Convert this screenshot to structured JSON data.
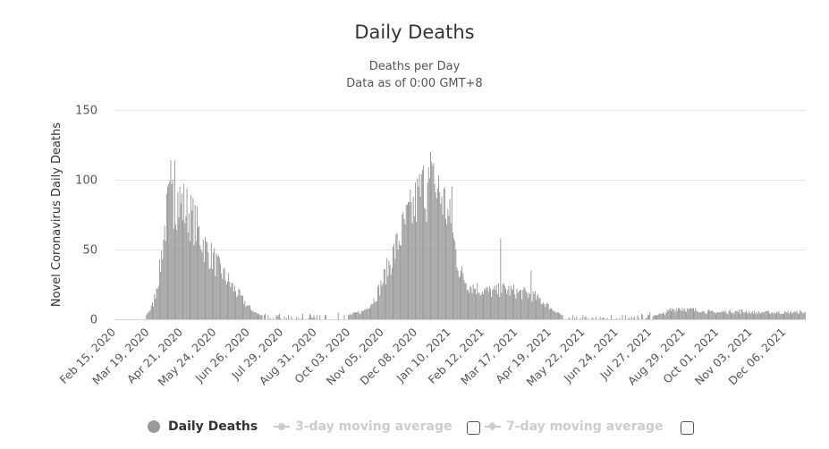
{
  "chart_data": {
    "type": "bar",
    "title": "Daily Deaths",
    "subtitle_lines": [
      "Deaths per Day",
      "Data as of 0:00 GMT+8"
    ],
    "xlabel": "",
    "ylabel": "Novel Coronavirus Daily Deaths",
    "ylim": [
      0,
      150
    ],
    "yticks": [
      0,
      50,
      100,
      150
    ],
    "grid": true,
    "start_date": "2020-02-15",
    "days_per_label": 33,
    "xtick_labels": [
      "Feb 15, 2020",
      "Mar 19, 2020",
      "Apr 21, 2020",
      "May 24, 2020",
      "Jun 26, 2020",
      "Jul 29, 2020",
      "Aug 31, 2020",
      "Oct 03, 2020",
      "Nov 05, 2020",
      "Dec 08, 2020",
      "Jan 10, 2021",
      "Feb 12, 2021",
      "Mar 17, 2021",
      "Apr 19, 2021",
      "May 22, 2021",
      "Jun 24, 2021",
      "Jul 27, 2021",
      "Aug 29, 2021",
      "Oct 01, 2021",
      "Nov 03, 2021",
      "Dec 06, 2021"
    ],
    "bar_color": "#999999",
    "series": [
      {
        "name": "Daily Deaths",
        "envelope": [
          [
            0,
            0
          ],
          [
            28,
            0
          ],
          [
            32,
            4
          ],
          [
            38,
            12
          ],
          [
            44,
            35
          ],
          [
            48,
            60
          ],
          [
            52,
            82
          ],
          [
            56,
            88
          ],
          [
            60,
            90
          ],
          [
            66,
            85
          ],
          [
            72,
            80
          ],
          [
            78,
            72
          ],
          [
            84,
            62
          ],
          [
            90,
            52
          ],
          [
            96,
            46
          ],
          [
            102,
            38
          ],
          [
            108,
            32
          ],
          [
            114,
            26
          ],
          [
            120,
            20
          ],
          [
            126,
            14
          ],
          [
            132,
            9
          ],
          [
            138,
            5
          ],
          [
            144,
            3
          ],
          [
            150,
            2
          ],
          [
            200,
            2
          ],
          [
            230,
            3
          ],
          [
            245,
            6
          ],
          [
            255,
            14
          ],
          [
            262,
            25
          ],
          [
            270,
            40
          ],
          [
            278,
            55
          ],
          [
            286,
            70
          ],
          [
            294,
            82
          ],
          [
            300,
            92
          ],
          [
            306,
            96
          ],
          [
            312,
            98
          ],
          [
            318,
            95
          ],
          [
            324,
            88
          ],
          [
            330,
            72
          ],
          [
            336,
            50
          ],
          [
            340,
            35
          ],
          [
            348,
            26
          ],
          [
            360,
            22
          ],
          [
            372,
            20
          ],
          [
            384,
            22
          ],
          [
            396,
            20
          ],
          [
            410,
            18
          ],
          [
            420,
            14
          ],
          [
            430,
            8
          ],
          [
            438,
            4
          ],
          [
            445,
            2
          ],
          [
            470,
            1
          ],
          [
            520,
            2
          ],
          [
            540,
            4
          ],
          [
            548,
            7
          ],
          [
            556,
            8
          ],
          [
            570,
            7
          ],
          [
            590,
            5
          ],
          [
            610,
            6
          ],
          [
            640,
            5
          ],
          [
            681,
            5
          ]
        ],
        "spikes": [
          [
            55,
            114
          ],
          [
            59,
            114
          ],
          [
            57,
            100
          ],
          [
            304,
            110
          ],
          [
            311,
            120
          ],
          [
            314,
            112
          ],
          [
            380,
            58
          ],
          [
            410,
            35
          ],
          [
            332,
            95
          ]
        ]
      }
    ],
    "legend": {
      "position": "bottom",
      "items": [
        {
          "label": "Daily Deaths",
          "active": true
        },
        {
          "label": "3-day moving average",
          "active": false
        },
        {
          "label": "7-day moving average",
          "active": false
        }
      ]
    }
  }
}
